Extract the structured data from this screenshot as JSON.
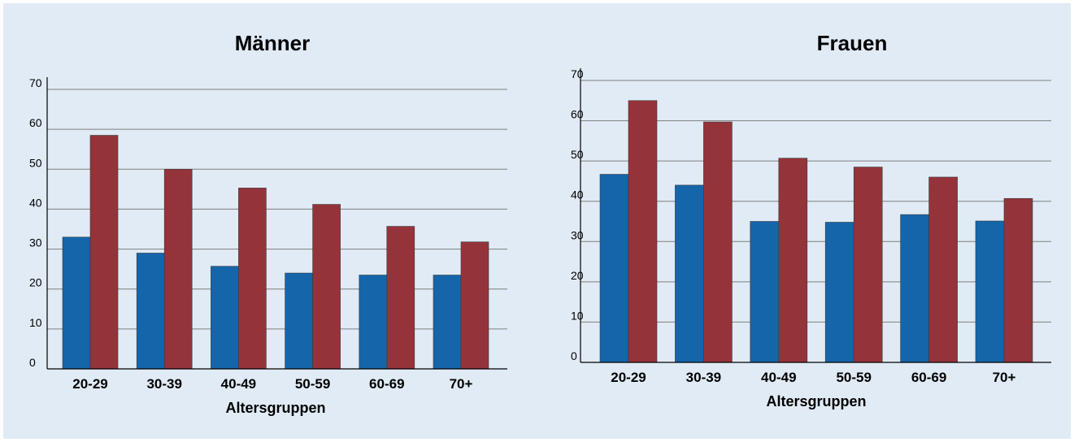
{
  "colors": {
    "background": "#e1ebf5",
    "series_1": "#1565ab",
    "series_2": "#95333b"
  },
  "chart_data": [
    {
      "type": "bar",
      "title": "Männer",
      "xlabel": "Altersgruppen",
      "ylabel": "",
      "categories": [
        "20-29",
        "30-39",
        "40-49",
        "50-59",
        "60-69",
        "70+"
      ],
      "ylim": [
        0,
        70
      ],
      "yticks": [
        "0",
        "10",
        "20",
        "30",
        "40",
        "50",
        "60",
        "70"
      ],
      "grid": true,
      "series": [
        {
          "values": [
            33,
            29,
            25.7,
            24,
            23.5,
            23.5
          ]
        },
        {
          "values": [
            58.5,
            50,
            45.3,
            41.2,
            35.7,
            31.8
          ]
        }
      ]
    },
    {
      "type": "bar",
      "title": "Frauen",
      "xlabel": "Altersgruppen",
      "ylabel": "",
      "categories": [
        "20-29",
        "30-39",
        "40-49",
        "50-59",
        "60-69",
        "70+"
      ],
      "ylim": [
        0,
        70
      ],
      "yticks": [
        "0",
        "10",
        "20",
        "30",
        "40",
        "50",
        "60",
        "70"
      ],
      "grid": true,
      "series": [
        {
          "values": [
            46.7,
            44,
            35,
            34.8,
            36.7,
            35.1
          ]
        },
        {
          "values": [
            65,
            59.7,
            50.7,
            48.5,
            46,
            40.7
          ]
        }
      ]
    }
  ]
}
